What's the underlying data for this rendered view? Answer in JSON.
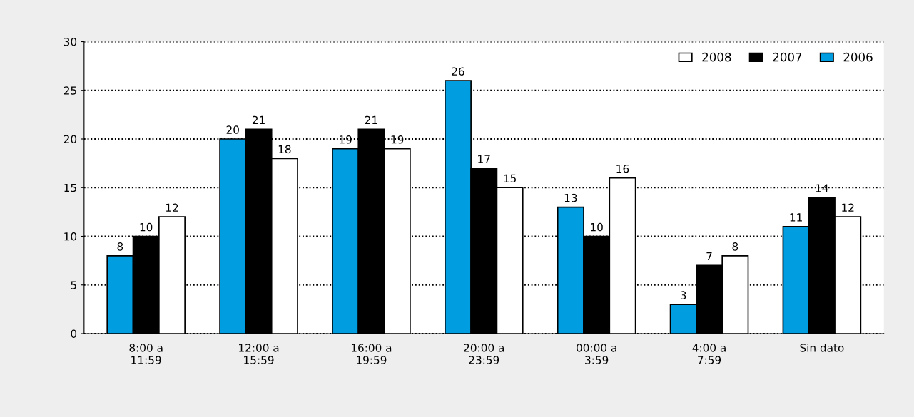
{
  "chart_data": {
    "type": "bar",
    "categories": [
      "8:00 a\n11:59",
      "12:00 a\n15:59",
      "16:00 a\n19:59",
      "20:00 a\n23:59",
      "00:00 a\n3:59",
      "4:00 a\n7:59",
      "Sin dato"
    ],
    "series": [
      {
        "name": "2006",
        "color": "#009ee0",
        "values": [
          8,
          20,
          19,
          26,
          13,
          3,
          11
        ]
      },
      {
        "name": "2007",
        "color": "#000000",
        "values": [
          10,
          21,
          21,
          17,
          10,
          7,
          14
        ]
      },
      {
        "name": "2008",
        "color": "#ffffff",
        "values": [
          12,
          18,
          19,
          15,
          16,
          8,
          12
        ]
      }
    ],
    "ylim": [
      0,
      30
    ],
    "yticks": [
      0,
      5,
      10,
      15,
      20,
      25,
      30
    ],
    "grid": "y",
    "legend": "top right",
    "data_labels": true
  }
}
